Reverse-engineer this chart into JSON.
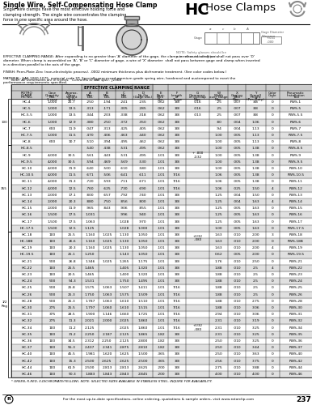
{
  "title_bold": "Single Wire, Self-Compensating Hose Clamp",
  "title_sub": "Single wire clamps have the most effective holding force and\nclamping strength. The single wire concentrates the clamping\nforce in one specific area around the hose.",
  "effective_text": "EFFECTIVE CLAMPING RANGE: After expanding to no greater than 'A' diameter of the gage, the clamp in released condition shall not pass over 'D'\ndiameter. When clamp is assembled on 'A', 'B' or 'C' diameter of gage, a wire of 'X' diameter  shall not pass between gage and clamp when inserted\nin a direction parallel to the axis of the gage.",
  "finish_text": "FINISH: Peen-Plate Zinc (non-electrolytic process). .0002 minimum thickness plus dichromate treatment. (See color codes below.)",
  "material_text": "MATERIAL: SAE 1060-1075, material code ST. Specially processed premium grade spring wire, hardened and austempered to meet the\nperformance requirements specified.",
  "note_text": "Note: All Dimensions are in Inches.   Conforms to SAE spec.  J1508",
  "rows": [
    [
      "HC-4",
      "1,000",
      "25.7",
      ".250",
      ".194",
      ".241",
      ".235",
      ".062",
      "3/8",
      ".016",
      ".015",
      ".25",
      ".007",
      ".88",
      "0",
      "PWS-1"
    ],
    [
      "HC-5",
      "1,000",
      "13.5",
      ".313",
      ".171",
      ".305",
      ".285",
      ".062",
      "3/8",
      ".016",
      ".015",
      ".25",
      ".007",
      ".88",
      "0",
      "PWS-5"
    ],
    [
      "HC-5.5",
      "1,000",
      "13.5",
      ".344",
      ".203",
      ".338",
      ".318",
      ".062",
      "3/8",
      ".013",
      ".015",
      ".25",
      ".007",
      ".88",
      "0",
      "PWS-5.5"
    ],
    [
      "HC-6",
      "1,000",
      "12.9",
      ".380",
      ".250",
      ".372",
      ".350",
      ".062",
      "3/8",
      "",
      ".015",
      ".80",
      ".004",
      "1.06",
      "0",
      "PWS-6"
    ],
    [
      "HC-7",
      "600",
      "11.9",
      ".047",
      ".313",
      ".425",
      ".405",
      ".062",
      "3/8",
      "",
      ".015",
      ".94",
      ".004",
      "1.13",
      "0",
      "PWS-7"
    ],
    [
      "HC-7.5",
      "1,000",
      "11.5",
      ".470",
      ".406",
      ".463",
      ".440",
      ".062",
      "3/8",
      "",
      ".015",
      "1.00",
      ".005",
      "1.13",
      "0",
      "PWS-7.5"
    ],
    [
      "HC-8",
      "600",
      "10.7",
      ".510",
      ".394",
      ".495",
      ".462",
      ".062",
      "3/8",
      "",
      ".062",
      "1.00",
      ".005",
      "1.13",
      "0",
      "PWS-8"
    ],
    [
      "HC-8.5",
      "",
      "",
      ".540",
      ".438",
      ".531",
      ".495",
      ".062",
      "3/8",
      "",
      "",
      "1.00",
      ".005",
      "1.38",
      "0",
      "PWS-8.5"
    ],
    [
      "HC-9",
      "4,000",
      "30.5",
      ".561",
      ".443",
      ".531",
      ".495",
      ".101",
      "3/8",
      "",
      "",
      "1.00",
      ".005",
      "1.38",
      "0",
      "PWS-9"
    ],
    [
      "HC-9.5",
      "4,000",
      "30.5",
      ".594",
      ".469",
      ".569",
      ".530",
      ".101",
      "3/8",
      "",
      "",
      "1.00",
      ".005",
      "1.38",
      "0",
      "PWS-9.5"
    ],
    [
      "HC-10",
      "4,000",
      "31.9",
      ".640",
      ".500",
      ".610",
      ".580",
      ".101",
      "3/8",
      "",
      "",
      "1.00",
      ".005",
      "1.38",
      "0",
      "PWS-10"
    ],
    [
      "HC-10.5",
      "4,000",
      "11.5",
      ".671",
      ".506",
      ".641",
      ".611",
      ".101",
      "7/16",
      "",
      "",
      "1.06",
      ".005",
      "1.38",
      "0",
      "PWS-10.5"
    ],
    [
      "HC-11",
      "4,000",
      "31.3",
      ".720",
      ".593",
      ".711",
      ".671",
      ".101",
      "7/16",
      "",
      "",
      "1.06",
      ".005",
      "1.38",
      "0",
      "PWS-11"
    ],
    [
      "HC-12",
      "4,000",
      "12.5",
      ".760",
      ".625",
      ".730",
      ".690",
      ".101",
      "7/16",
      "",
      "",
      "1.06",
      ".025",
      "1.50",
      "4",
      "PWS-12"
    ],
    [
      "HC-13",
      "2,000",
      "17.1",
      ".800",
      ".657",
      ".792",
      ".740",
      ".101",
      "3/8",
      "",
      "",
      "1.25",
      ".004",
      "1.50",
      "0",
      "PWS-13"
    ],
    [
      "HC-14",
      "2,000",
      "20.3",
      ".880",
      ".750",
      ".856",
      ".800",
      ".101",
      "3/8",
      "",
      "",
      "1.25",
      ".004",
      "1.63",
      "4",
      "PWS-14"
    ],
    [
      "HC-15",
      "2,000",
      "11.9",
      ".965",
      ".843",
      ".906",
      ".855",
      ".101",
      "3/8",
      "",
      "",
      "1.25",
      ".005",
      "1.63",
      "0",
      "PWS-15"
    ],
    [
      "HC-16",
      "1,500",
      "17.5",
      "1.031",
      "",
      ".996",
      ".940",
      ".101",
      "3/8",
      "",
      "",
      "1.25",
      ".005",
      "1.63",
      "0",
      "PWS-16"
    ],
    [
      "HC-17",
      "1,500",
      "17.5",
      "1.063",
      "",
      "1.028",
      ".970",
      ".101",
      "3/8",
      "",
      "",
      "1.25",
      ".005",
      "1.63",
      "0",
      "PWS-17"
    ],
    [
      "HC-17.5",
      "1,500",
      "12.5",
      "1.125",
      "",
      "1.028",
      "1.000",
      ".101",
      "3/8",
      "",
      "",
      "1.00",
      ".005",
      "1.63",
      "0",
      "PWS-17.5"
    ],
    [
      "HC-18",
      "100",
      "25.5",
      "1.160",
      "1.025",
      "1.130",
      "1.050",
      ".101",
      "3/8",
      "",
      "",
      "1.63",
      ".010",
      "2.00",
      "3",
      "PWS-18"
    ],
    [
      "HC-18B",
      "100",
      "26.6",
      "1.160",
      "1.025",
      "1.130",
      "1.050",
      ".101",
      "3/8",
      "",
      "",
      "1.63",
      ".010",
      "2.00",
      "0",
      "PWS-18B"
    ],
    [
      "HC-19",
      "100",
      "20.3",
      "1.160",
      "1.025",
      "1.130",
      "1.050",
      ".101",
      "3/8",
      "",
      "",
      "1.63",
      ".010",
      "2.00",
      "4",
      "PWS-19"
    ],
    [
      "HC-19.5",
      "100",
      "25.1",
      "1.250",
      "",
      "1.143",
      "1.050",
      ".101",
      "3/8",
      "",
      "",
      "0.62",
      ".005",
      "2.00",
      "0",
      "PWS-19.5"
    ],
    [
      "HC-21",
      "500",
      "26.8",
      "1.346",
      "1.025",
      "1.265",
      "1.175",
      ".101",
      "3/8",
      "",
      "",
      "1.76",
      ".010",
      "2.50",
      "0",
      "PWS-21"
    ],
    [
      "HC-22",
      "100",
      "25.5",
      "1.465",
      "",
      "1.405",
      "1.320",
      ".101",
      "3/8",
      "",
      "",
      "1.88",
      ".010",
      "2.5",
      "4",
      "PWS-22"
    ],
    [
      "HC-23",
      "100",
      "20.5",
      "1.465",
      "",
      "1.400",
      "1.320",
      ".101",
      "3/8",
      "",
      "",
      "1.88",
      ".010",
      "2.5",
      "0",
      "PWS-23"
    ],
    [
      "HC-24",
      "500",
      "54.3",
      "1.531",
      "",
      "1.750",
      "1.495",
      ".101",
      "3/8",
      "",
      "",
      "1.88",
      ".010",
      "2.5",
      "0",
      "PWS-24"
    ],
    [
      "HC-25",
      "500",
      "25.8",
      "1.575",
      "1.063",
      "1.507",
      "1.411",
      ".101",
      "7/16",
      "",
      "",
      "1.88",
      ".010",
      "2.5",
      "0",
      "PWS-25"
    ],
    [
      "HC-26",
      "500",
      "25.3",
      "1.750",
      "1.063",
      "1.575",
      "1.509",
      ".101",
      "7/16",
      "",
      "",
      "1.88",
      ".010",
      "2.5",
      "0",
      "PWS-26"
    ],
    [
      "HC-28",
      "500",
      "25.3",
      "1.787",
      "1.063",
      "1.610",
      "1.510",
      ".101",
      "7/16",
      "",
      "",
      "1.88",
      ".010",
      "2.75",
      "0",
      "PWS-28"
    ],
    [
      "HC-30",
      "275",
      "25.5",
      "1.797",
      "1.060",
      "1.610",
      "1.515",
      ".101",
      "7/16",
      "",
      "",
      "1.88",
      ".010",
      "3.06",
      "0",
      "PWS-30"
    ],
    [
      "HC-31",
      "375",
      "28.5",
      "1.900",
      "1.146",
      "1.660",
      "1.725",
      ".101",
      "7/16",
      "",
      "",
      "2.94",
      ".010",
      "3.06",
      "0",
      "PWS-31"
    ],
    [
      "HC-32",
      "275",
      "11.3",
      "2.021",
      "2.000",
      "2.025",
      "1.860",
      ".101",
      "7/16",
      "",
      "",
      "2.31",
      ".010",
      "3.19",
      "0",
      "PWS-32"
    ],
    [
      "HC-34",
      "100",
      "11.2",
      "2.125",
      "",
      "2.025",
      "1.860",
      ".101",
      "7/16",
      "",
      "",
      "2.31",
      ".010",
      "3.25",
      "0",
      "PWS-34"
    ],
    [
      "HC-35",
      "100",
      "31.2",
      "2.250",
      "2.187",
      "2.125",
      "1.865",
      ".182",
      "3/8",
      "",
      "",
      "2.31",
      ".010",
      "3.25",
      "0",
      "PWS-35"
    ],
    [
      "HC-36",
      "100",
      "34.5",
      "2.312",
      "2.250",
      "2.125",
      "2.800",
      ".182",
      "3/8",
      "",
      "",
      "2.50",
      ".010",
      "3.25",
      "0",
      "PWS-36"
    ],
    [
      "HC-37",
      "100",
      "55.3",
      "2.437",
      "2.341",
      "2.875",
      "2.810",
      ".182",
      "3/8",
      "",
      "",
      "2.50",
      ".010",
      "3.44",
      "0",
      "PWS-37"
    ],
    [
      "HC-40",
      "100",
      "45.5",
      "1.981",
      "1.620",
      "1.625",
      "1.500",
      ".365",
      "3/8",
      "",
      "",
      "2.50",
      ".010",
      "3.63",
      "0",
      "PWS-40"
    ],
    [
      "HC-42",
      "100",
      "15.3",
      "2.500",
      "2.625",
      "2.625",
      "2.500",
      ".365",
      "3/8",
      "",
      "",
      "2.56",
      ".010",
      "3.75",
      "0",
      "PWS-42"
    ],
    [
      "HC-44",
      "100",
      "61.9",
      "2.500",
      "2.813",
      "2.813",
      "2.625",
      ".200",
      "3/8",
      "",
      "",
      "2.75",
      ".010",
      "3.88",
      "0",
      "PWS-44"
    ],
    [
      "HC-46",
      "100",
      "50.3",
      "1.883",
      "1.843",
      "2.843",
      "2.845",
      ".200",
      "3/8",
      "",
      "",
      "4.00",
      ".010",
      "4.00",
      "0",
      "PWS-46"
    ]
  ],
  "footer_note": "* GREEN, R-RED, 0-DICHROMATE(YELLOW), NOTE: SELECTED SIZES AVAILABLE IN STAINLESS STEEL. INQUIRE FOR AVAILABILITY.",
  "page_footer": "For the most up-to-date specifications, online ordering, quotations & sample orders, visit www.rotorclip.com",
  "page_num": "237",
  "bg_color": "#ffffff",
  "header_bg": "#cccccc",
  "row_alt_bg": "#e0e0e0",
  "table_font_size": 3.2,
  "header_font_size": 3.0
}
